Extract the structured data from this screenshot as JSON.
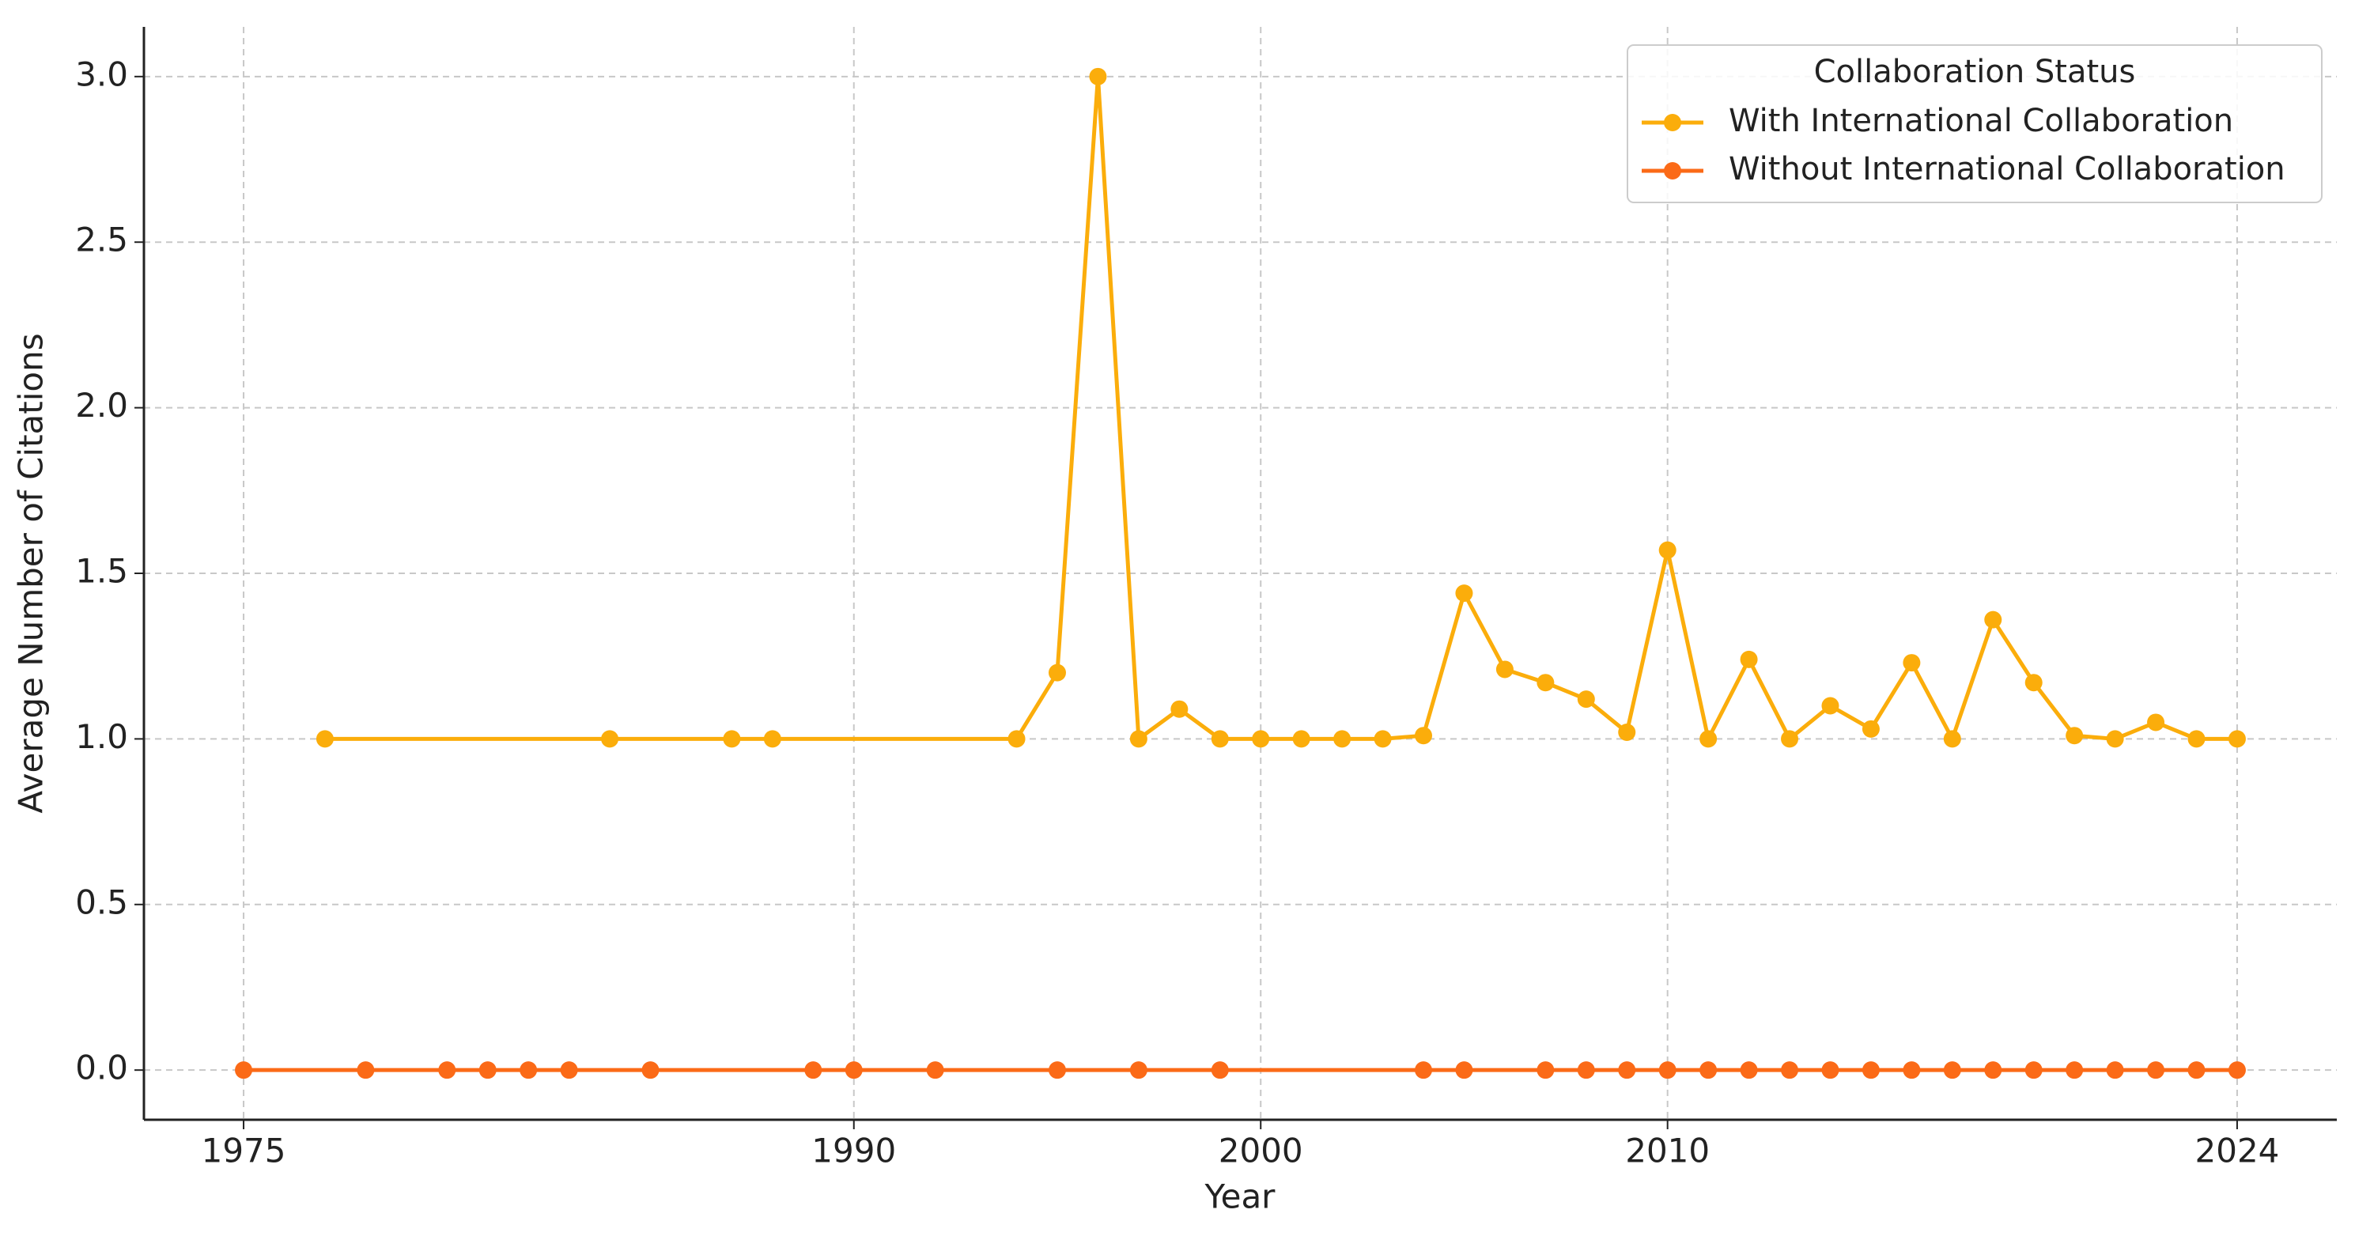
{
  "chart_data": {
    "type": "line",
    "xlabel": "Year",
    "ylabel": "Average Number of Citations",
    "xlim": [
      1972.55,
      2026.45
    ],
    "xticks": [
      1975,
      1990,
      2000,
      2010,
      2024
    ],
    "ylim": [
      -0.15,
      3.15
    ],
    "yticks": [
      {
        "value": 0,
        "label": "0.0"
      },
      0.5,
      {
        "value": 1,
        "label": "1.0"
      },
      1.5,
      {
        "value": 2,
        "label": "2.0"
      },
      2.5,
      {
        "value": 3,
        "label": "3.0"
      }
    ],
    "grid": true,
    "legend_title": "Collaboration Status",
    "legend_position": "upper right",
    "series": [
      {
        "name": "With International Collaboration",
        "color": "#fbad0b",
        "x": [
          1977,
          1984,
          1987,
          1988,
          1994,
          1995,
          1996,
          1997,
          1998,
          1999,
          2000,
          2001,
          2002,
          2003,
          2004,
          2005,
          2006,
          2007,
          2008,
          2009,
          2010,
          2011,
          2012,
          2013,
          2014,
          2015,
          2016,
          2017,
          2018,
          2019,
          2020,
          2021,
          2022,
          2023,
          2024
        ],
        "values": [
          1.0,
          1.0,
          1.0,
          1.0,
          1.0,
          1.2,
          3.0,
          1.0,
          1.09,
          1.0,
          1.0,
          1.0,
          1.0,
          1.0,
          1.01,
          1.44,
          1.21,
          1.17,
          1.12,
          1.02,
          1.57,
          1.0,
          1.24,
          1.0,
          1.1,
          1.03,
          1.23,
          1.0,
          1.36,
          1.17,
          1.01,
          1.0,
          1.05,
          1.0,
          1.0
        ]
      },
      {
        "name": "Without International Collaboration",
        "color": "#fb6a17",
        "x": [
          1975,
          1978,
          1980,
          1981,
          1982,
          1983,
          1985,
          1989,
          1990,
          1992,
          1995,
          1997,
          1999,
          2004,
          2005,
          2007,
          2008,
          2009,
          2010,
          2011,
          2012,
          2013,
          2014,
          2015,
          2016,
          2017,
          2018,
          2019,
          2020,
          2021,
          2022,
          2023,
          2024
        ],
        "values": [
          0,
          0,
          0,
          0,
          0,
          0,
          0,
          0,
          0,
          0,
          0,
          0,
          0,
          0,
          0,
          0,
          0,
          0,
          0,
          0,
          0,
          0,
          0,
          0,
          0,
          0,
          0,
          0,
          0,
          0,
          0,
          0,
          0
        ]
      }
    ]
  }
}
